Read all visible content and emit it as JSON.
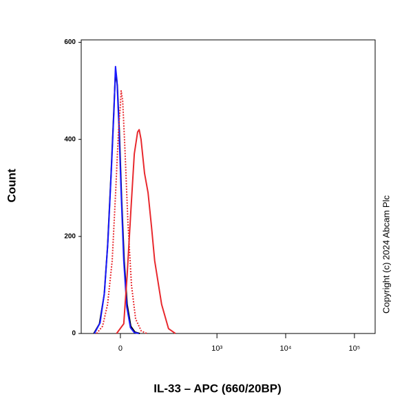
{
  "chart_data": {
    "type": "line",
    "xlabel": "IL-33 – APC (660/20BP)",
    "ylabel": "Count",
    "annotation": "Copyright (c) 2024 Abcam Plc",
    "xscale": "arcsinh",
    "xlim": [
      -136,
      200000
    ],
    "ylim": [
      0,
      605
    ],
    "xticks": [
      0,
      {
        "value": 1000,
        "label": "10³"
      },
      {
        "value": 10000,
        "label": "10⁴"
      },
      {
        "value": 100000,
        "label": "10⁵"
      }
    ],
    "yticks": [
      0,
      200,
      400,
      600
    ],
    "series": [
      {
        "color": "#000000",
        "linestyle": "solid",
        "x": [
          -80,
          -60,
          -45,
          -35,
          -25,
          -18,
          -13,
          -8,
          -3,
          3,
          10,
          18,
          28,
          40,
          55
        ],
        "values": [
          0,
          20,
          80,
          180,
          330,
          450,
          540,
          510,
          420,
          280,
          150,
          60,
          15,
          3,
          0
        ]
      },
      {
        "color": "#1a1aff",
        "linestyle": "solid",
        "x": [
          -78,
          -58,
          -44,
          -34,
          -24,
          -17,
          -13,
          -9,
          -4,
          2,
          9,
          17,
          27,
          38,
          52
        ],
        "values": [
          0,
          22,
          85,
          190,
          340,
          460,
          550,
          520,
          430,
          290,
          150,
          55,
          12,
          2,
          0
        ]
      },
      {
        "color": "#e8282d",
        "linestyle": "dotted",
        "x": [
          -70,
          -50,
          -35,
          -22,
          -12,
          -5,
          0,
          2,
          6,
          12,
          20,
          30,
          42,
          60,
          80
        ],
        "values": [
          0,
          15,
          60,
          150,
          300,
          420,
          470,
          500,
          480,
          380,
          230,
          100,
          30,
          5,
          0
        ]
      },
      {
        "color": "#e8282d",
        "linestyle": "solid",
        "x": [
          -10,
          9,
          18,
          28,
          38,
          48,
          53,
          59,
          71,
          84,
          98,
          112,
          147,
          190,
          243
        ],
        "values": [
          0,
          20,
          120,
          250,
          370,
          415,
          420,
          400,
          330,
          290,
          220,
          150,
          60,
          10,
          0
        ]
      }
    ]
  }
}
